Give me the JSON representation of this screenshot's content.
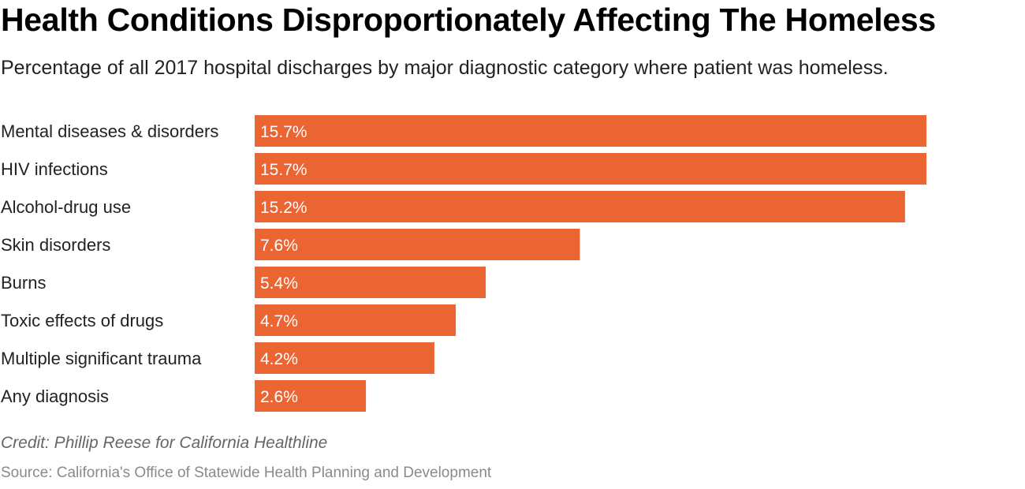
{
  "chart_data": {
    "type": "bar",
    "orientation": "horizontal",
    "title": "Health Conditions Disproportionately Affecting The Homeless",
    "subtitle": "Percentage of all 2017 hospital discharges by major diagnostic category where patient was homeless.",
    "categories": [
      "Mental diseases & disorders",
      "HIV infections",
      "Alcohol-drug use",
      "Skin disorders",
      "Burns",
      "Toxic effects of drugs",
      "Multiple significant trauma",
      "Any diagnosis"
    ],
    "values": [
      15.7,
      15.7,
      15.2,
      7.6,
      5.4,
      4.7,
      4.2,
      2.6
    ],
    "value_labels": [
      "15.7%",
      "15.7%",
      "15.2%",
      "7.6%",
      "5.4%",
      "4.7%",
      "4.2%",
      "2.6%"
    ],
    "unit": "%",
    "xlabel": "",
    "ylabel": "",
    "xlim": [
      0,
      15.7
    ],
    "grid": false,
    "legend": "none",
    "bar_color": "#EA6532",
    "credit": "Credit: Phillip Reese for California Healthline",
    "source": "Source: California's Office of Statewide Health Planning and Development"
  }
}
